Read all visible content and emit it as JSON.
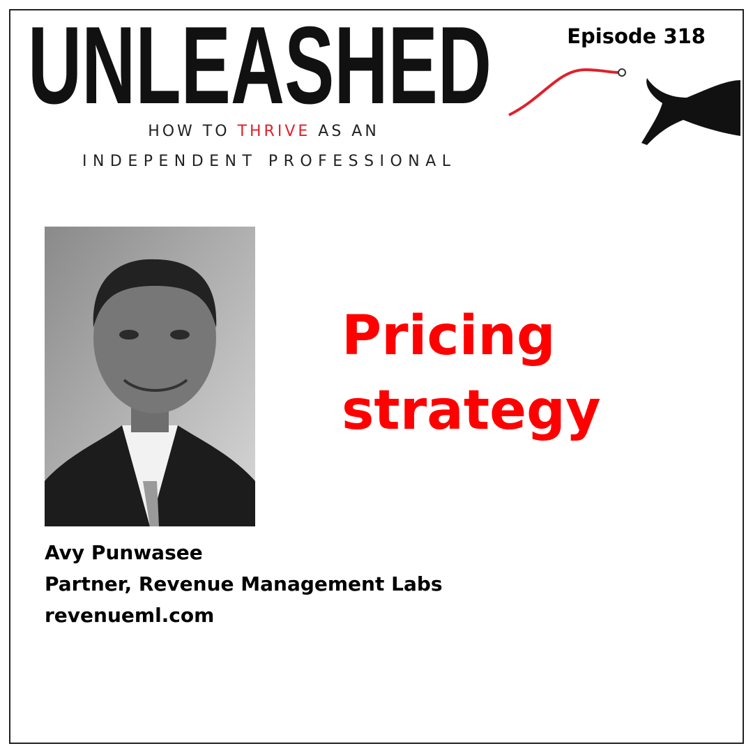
{
  "logo": {
    "title": "UNLEASHED",
    "tagline": {
      "line1": [
        "HOW TO",
        "THRIVE",
        "AS AN"
      ],
      "line2": "INDEPENDENT PROFESSIONAL"
    }
  },
  "episode": "Episode 318",
  "topic": [
    "Pricing",
    "strategy"
  ],
  "guest": {
    "name": "Avy Punwasee",
    "role": "Partner, Revenue Management Labs",
    "website": "revenueml.com"
  }
}
